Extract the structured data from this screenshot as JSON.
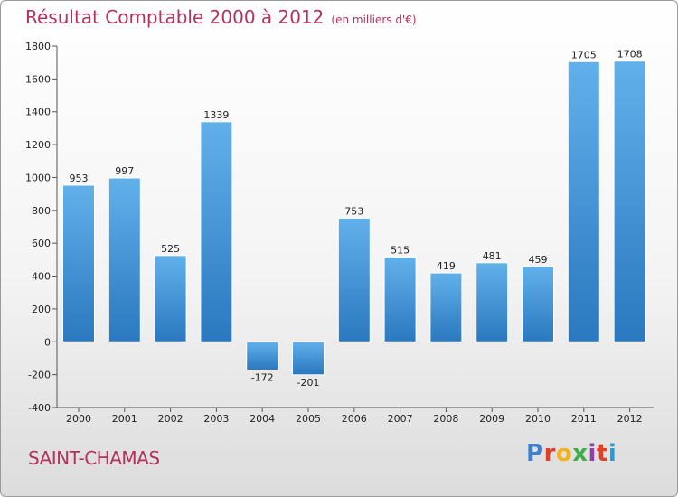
{
  "chart_data": {
    "type": "bar",
    "title": "Résultat Comptable 2000 à 2012",
    "subtitle": "(en milliers d'€)",
    "categories": [
      "2000",
      "2001",
      "2002",
      "2003",
      "2004",
      "2005",
      "2006",
      "2007",
      "2008",
      "2009",
      "2010",
      "2011",
      "2012"
    ],
    "values": [
      953,
      997,
      525,
      1339,
      -172,
      -201,
      753,
      515,
      419,
      481,
      459,
      1705,
      1708
    ],
    "ylim": [
      -400,
      1800
    ],
    "yticks": [
      1800,
      1600,
      1400,
      1200,
      1000,
      800,
      600,
      400,
      200,
      0,
      -200,
      -400
    ],
    "grid": false,
    "bar_color": "#3d95d8"
  },
  "location": "SAINT-CHAMAS",
  "logo": {
    "text": "Proxiti",
    "letters": [
      "P",
      "r",
      "o",
      "x",
      "i",
      "t",
      "i"
    ]
  },
  "colors": {
    "title": "#b4315e",
    "bar_light": "#62b0ea",
    "bar_dark": "#2a78bf"
  }
}
